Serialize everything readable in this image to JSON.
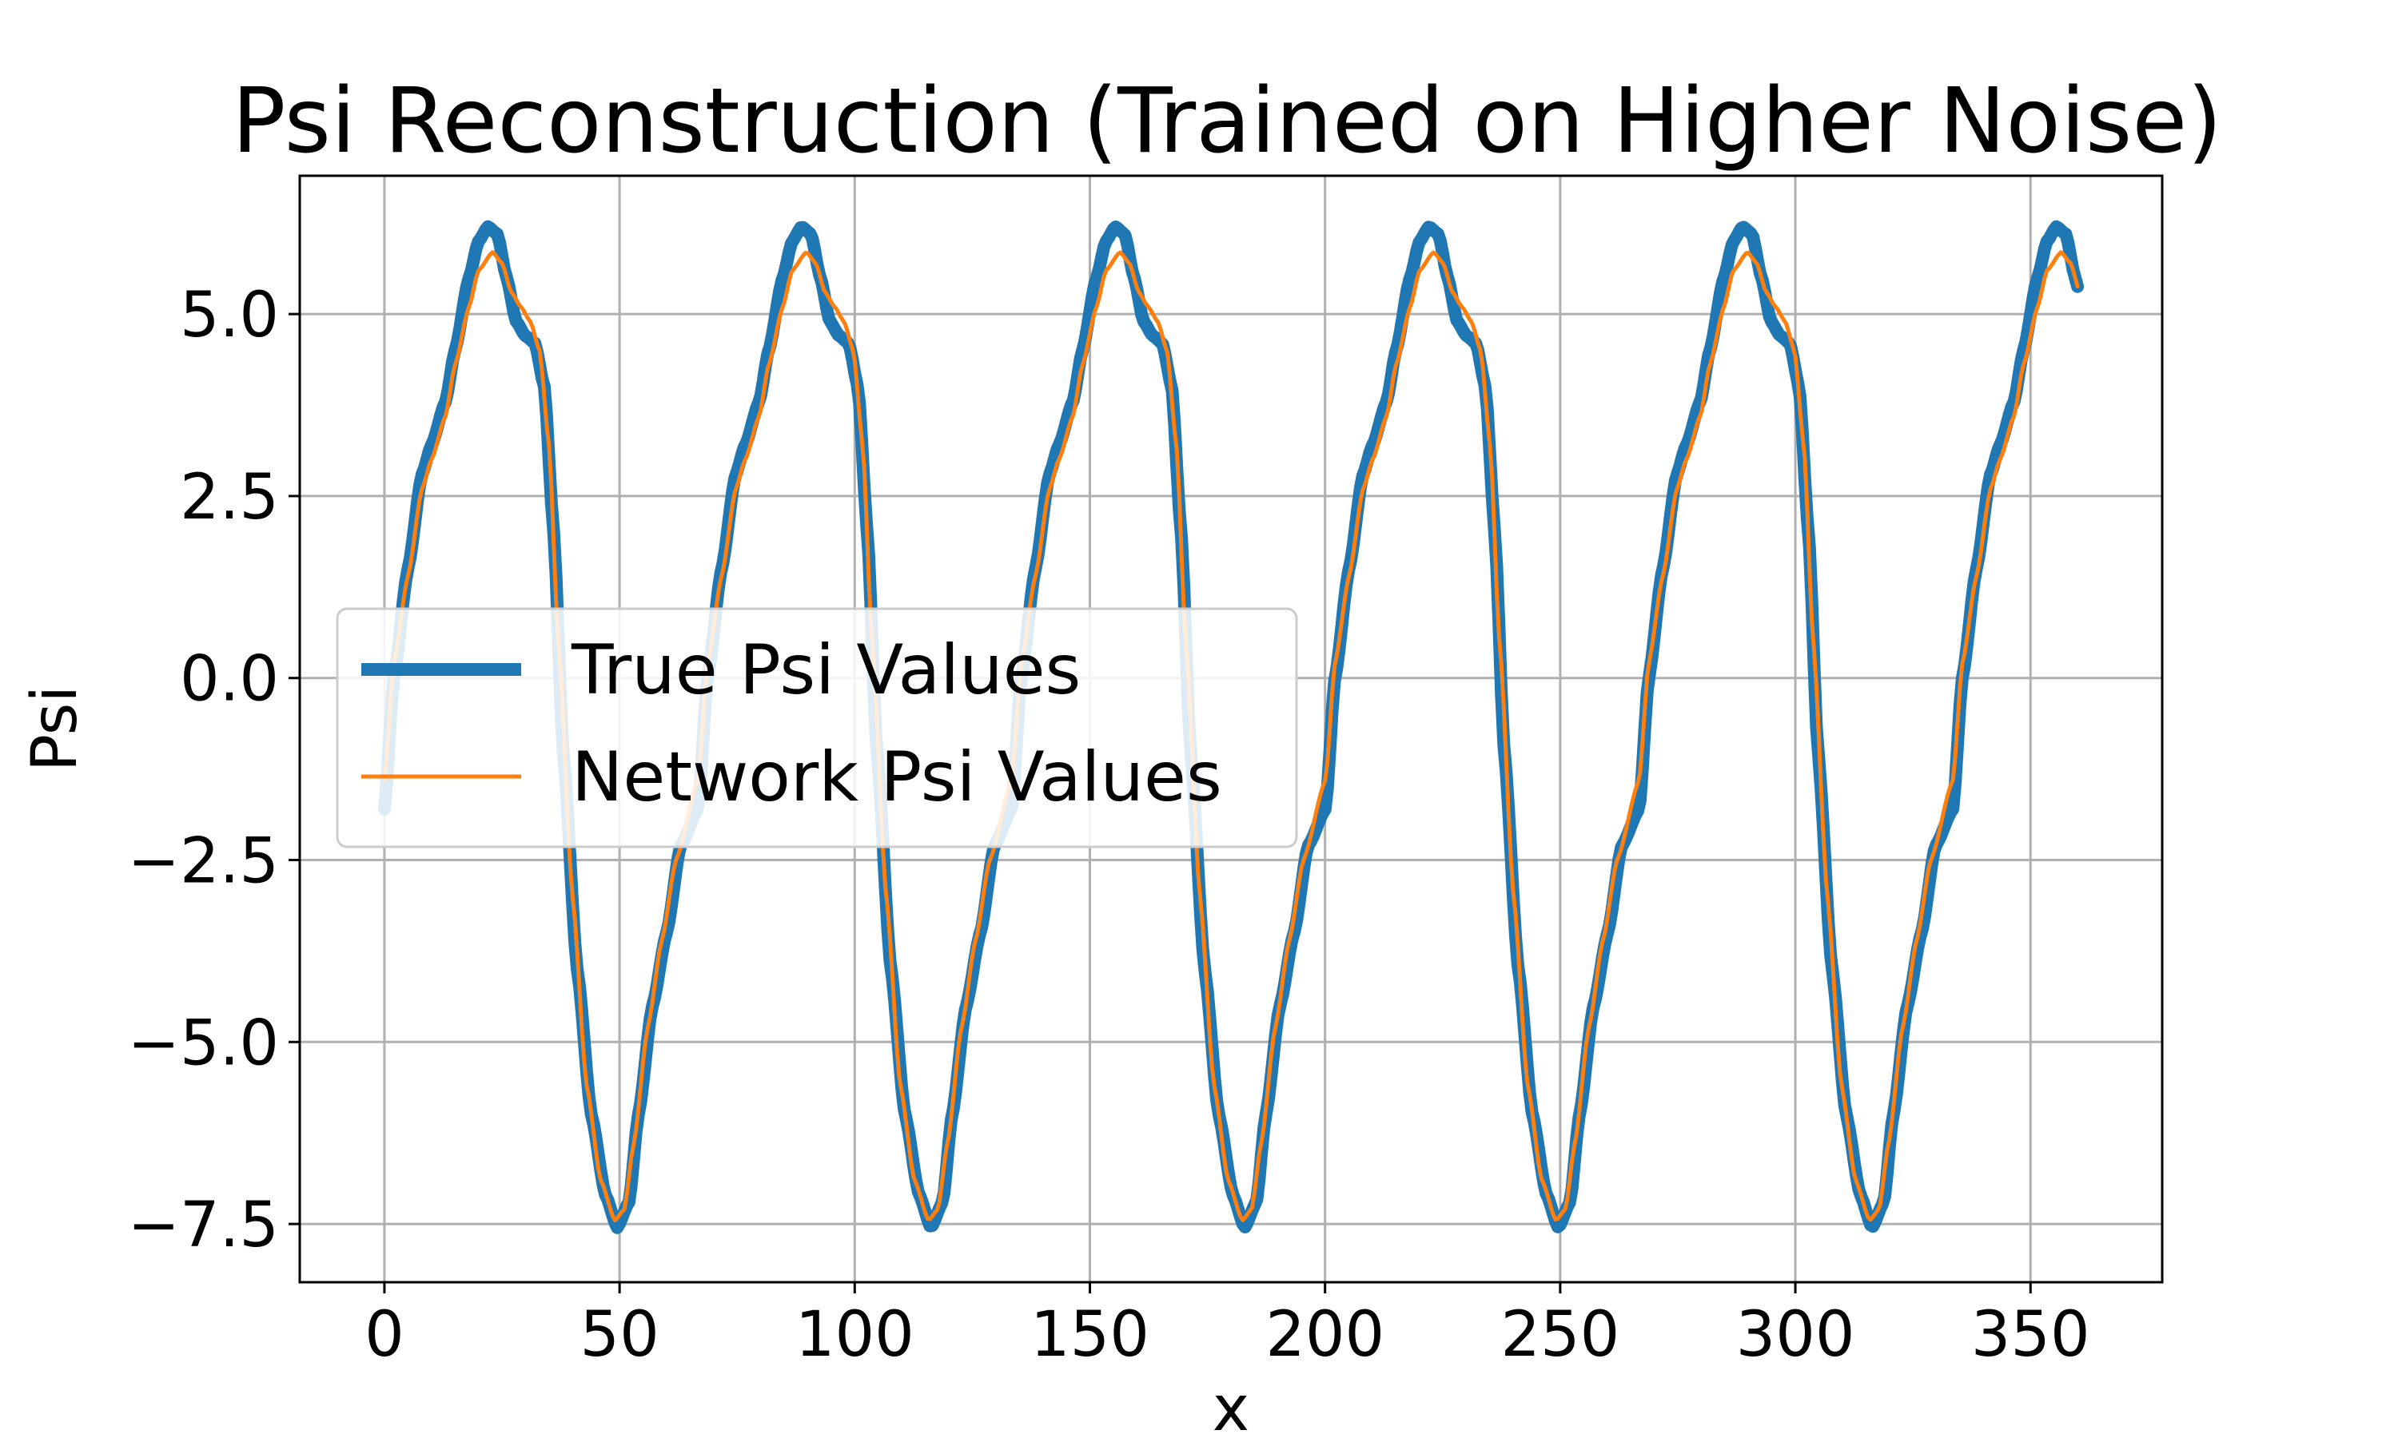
{
  "chart_data": {
    "type": "line",
    "title": "Psi Reconstruction (Trained on Higher Noise)",
    "xlabel": "x",
    "ylabel": "Psi",
    "xlim": [
      -18,
      378
    ],
    "ylim": [
      -8.3,
      6.9
    ],
    "xticks": [
      0,
      50,
      100,
      150,
      200,
      250,
      300,
      350
    ],
    "xtick_labels": [
      "0",
      "50",
      "100",
      "150",
      "200",
      "250",
      "300",
      "350"
    ],
    "yticks": [
      5.0,
      2.5,
      0.0,
      -2.5,
      -5.0,
      -7.5
    ],
    "ytick_labels": [
      "5.0",
      "2.5",
      "0.0",
      "−2.5",
      "−5.0",
      "−7.5"
    ],
    "grid": true,
    "legend_position": "center-left",
    "x_range": [
      0,
      360
    ],
    "period": 66.7,
    "series": [
      {
        "name": "True Psi Values",
        "color": "#1f77b4",
        "profile": [
          [
            0,
            -1.8
          ],
          [
            2,
            0.0
          ],
          [
            5,
            1.5
          ],
          [
            8,
            2.8
          ],
          [
            10,
            3.2
          ],
          [
            13,
            3.8
          ],
          [
            15,
            4.5
          ],
          [
            18,
            5.5
          ],
          [
            20,
            6.0
          ],
          [
            22,
            6.2
          ],
          [
            24,
            6.1
          ],
          [
            26,
            5.5
          ],
          [
            28,
            4.9
          ],
          [
            30,
            4.7
          ],
          [
            32,
            4.6
          ],
          [
            34,
            4.0
          ],
          [
            36,
            2.0
          ],
          [
            38,
            -1.0
          ],
          [
            41,
            -4.0
          ],
          [
            44,
            -6.0
          ],
          [
            47,
            -7.1
          ],
          [
            49.5,
            -7.55
          ],
          [
            52,
            -7.2
          ],
          [
            54,
            -6.0
          ],
          [
            57,
            -4.5
          ],
          [
            60,
            -3.5
          ],
          [
            63,
            -2.3
          ],
          [
            66.7,
            -1.8
          ]
        ],
        "sample_values": [
          [
            0,
            -1.8
          ],
          [
            22,
            6.2
          ],
          [
            30,
            4.7
          ],
          [
            50,
            -7.55
          ],
          [
            89,
            6.2
          ],
          [
            117,
            -7.55
          ],
          [
            156,
            6.2
          ],
          [
            183,
            -7.55
          ],
          [
            223,
            6.2
          ],
          [
            250,
            -7.55
          ],
          [
            290,
            6.2
          ],
          [
            317,
            -7.55
          ],
          [
            356,
            6.2
          ],
          [
            360,
            5.4
          ]
        ]
      },
      {
        "name": "Network Psi Values",
        "color": "#ff7f0e",
        "profile": [
          [
            0,
            -1.4
          ],
          [
            2,
            0.2
          ],
          [
            5,
            1.4
          ],
          [
            8,
            2.6
          ],
          [
            10,
            3.0
          ],
          [
            13,
            3.6
          ],
          [
            15,
            4.3
          ],
          [
            18,
            5.1
          ],
          [
            20,
            5.6
          ],
          [
            23,
            5.85
          ],
          [
            25,
            5.7
          ],
          [
            27,
            5.3
          ],
          [
            29,
            5.1
          ],
          [
            31,
            4.9
          ],
          [
            33,
            4.5
          ],
          [
            35,
            3.2
          ],
          [
            37,
            0.5
          ],
          [
            40,
            -3.0
          ],
          [
            43,
            -5.6
          ],
          [
            46,
            -6.9
          ],
          [
            49,
            -7.45
          ],
          [
            51,
            -7.3
          ],
          [
            53,
            -6.4
          ],
          [
            56,
            -4.8
          ],
          [
            59,
            -3.6
          ],
          [
            62,
            -2.5
          ],
          [
            66.7,
            -1.4
          ]
        ],
        "sample_values": [
          [
            0,
            -1.4
          ],
          [
            23,
            5.85
          ],
          [
            31,
            4.9
          ],
          [
            49,
            -7.45
          ],
          [
            90,
            5.85
          ],
          [
            116,
            -7.45
          ],
          [
            157,
            5.85
          ],
          [
            183,
            -7.45
          ],
          [
            224,
            5.85
          ],
          [
            250,
            -7.45
          ],
          [
            290,
            5.85
          ],
          [
            316,
            -7.45
          ],
          [
            357,
            5.85
          ],
          [
            360,
            5.6
          ]
        ]
      }
    ]
  }
}
